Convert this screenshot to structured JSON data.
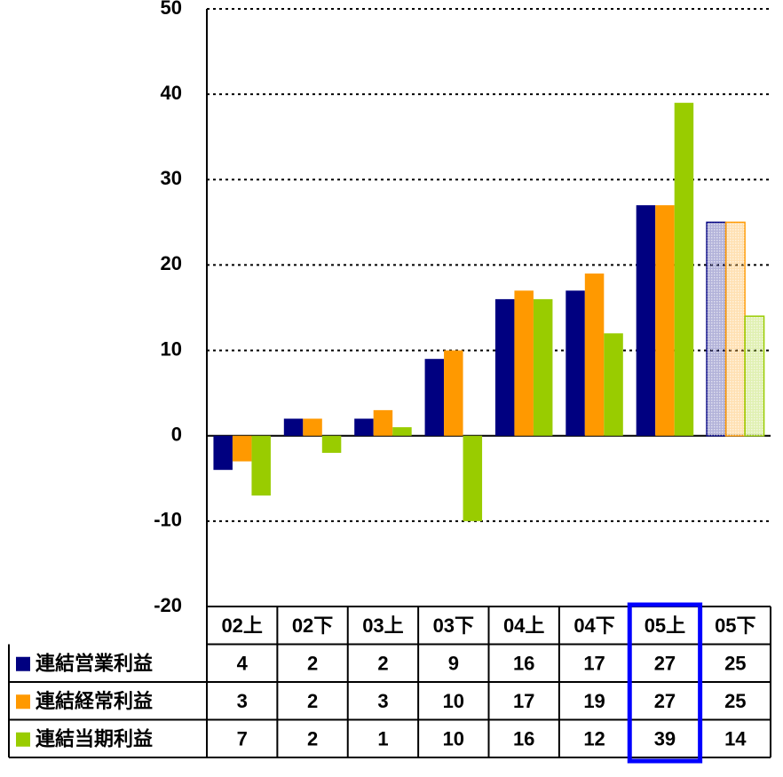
{
  "chart_data": {
    "type": "bar",
    "categories": [
      "02上",
      "02下",
      "03上",
      "03下",
      "04上",
      "04下",
      "05上",
      "05下"
    ],
    "series": [
      {
        "name": "連結営業利益",
        "color": "#000080",
        "values": [
          -4,
          2,
          2,
          9,
          16,
          17,
          27,
          25
        ],
        "value_labels": [
          "4",
          "2",
          "2",
          "9",
          "16",
          "17",
          "27",
          "25"
        ]
      },
      {
        "name": "連結経常利益",
        "color": "#ff9900",
        "values": [
          -3,
          2,
          3,
          10,
          17,
          19,
          27,
          25
        ],
        "value_labels": [
          "3",
          "2",
          "3",
          "10",
          "17",
          "19",
          "27",
          "25"
        ]
      },
      {
        "name": "連結当期利益",
        "color": "#99cc00",
        "values": [
          -7,
          -2,
          1,
          -10,
          16,
          12,
          39,
          14
        ],
        "value_labels": [
          "7",
          "2",
          "1",
          "10",
          "16",
          "12",
          "39",
          "14"
        ]
      }
    ],
    "ylim": [
      -20,
      50
    ],
    "yticks": [
      -20,
      -10,
      0,
      10,
      20,
      30,
      40,
      50
    ],
    "grid": true
  }
}
